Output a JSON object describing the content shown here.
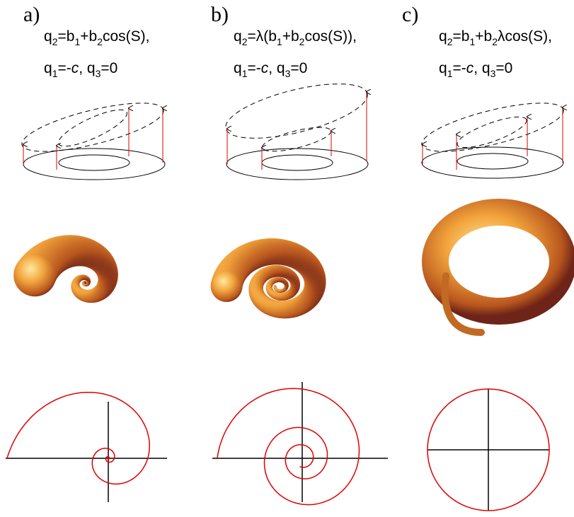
{
  "panels": [
    {
      "label": "a)",
      "equation": [
        {
          "t": "q"
        },
        {
          "t": "2",
          "sub": true
        },
        {
          "t": "=b"
        },
        {
          "t": "1",
          "sub": true
        },
        {
          "t": "+b"
        },
        {
          "t": "2",
          "sub": true
        },
        {
          "t": "cos(S),"
        }
      ],
      "conditions": [
        {
          "t": "q"
        },
        {
          "t": "1",
          "sub": true
        },
        {
          "t": "=-"
        },
        {
          "t": "c",
          "italic": true
        },
        {
          "t": ",  q"
        },
        {
          "t": "3",
          "sub": true
        },
        {
          "t": "=0"
        }
      ]
    },
    {
      "label": "b)",
      "equation": [
        {
          "t": "q"
        },
        {
          "t": "2",
          "sub": true
        },
        {
          "t": "=λ(b"
        },
        {
          "t": "1",
          "sub": true
        },
        {
          "t": "+b"
        },
        {
          "t": "2",
          "sub": true
        },
        {
          "t": "cos(S)),"
        }
      ],
      "conditions": [
        {
          "t": "q"
        },
        {
          "t": "1",
          "sub": true
        },
        {
          "t": "=-"
        },
        {
          "t": "c",
          "italic": true
        },
        {
          "t": ",  q"
        },
        {
          "t": "3",
          "sub": true
        },
        {
          "t": "=0"
        }
      ]
    },
    {
      "label": "c)",
      "equation": [
        {
          "t": "q"
        },
        {
          "t": "2",
          "sub": true
        },
        {
          "t": "=b"
        },
        {
          "t": "1",
          "sub": true
        },
        {
          "t": "+b"
        },
        {
          "t": "2",
          "sub": true
        },
        {
          "t": "λcos(S),"
        }
      ],
      "conditions": [
        {
          "t": "q"
        },
        {
          "t": "1",
          "sub": true
        },
        {
          "t": "=-"
        },
        {
          "t": "c",
          "italic": true
        },
        {
          "t": ",  q"
        },
        {
          "t": "3",
          "sub": true
        },
        {
          "t": "=0"
        }
      ]
    }
  ]
}
